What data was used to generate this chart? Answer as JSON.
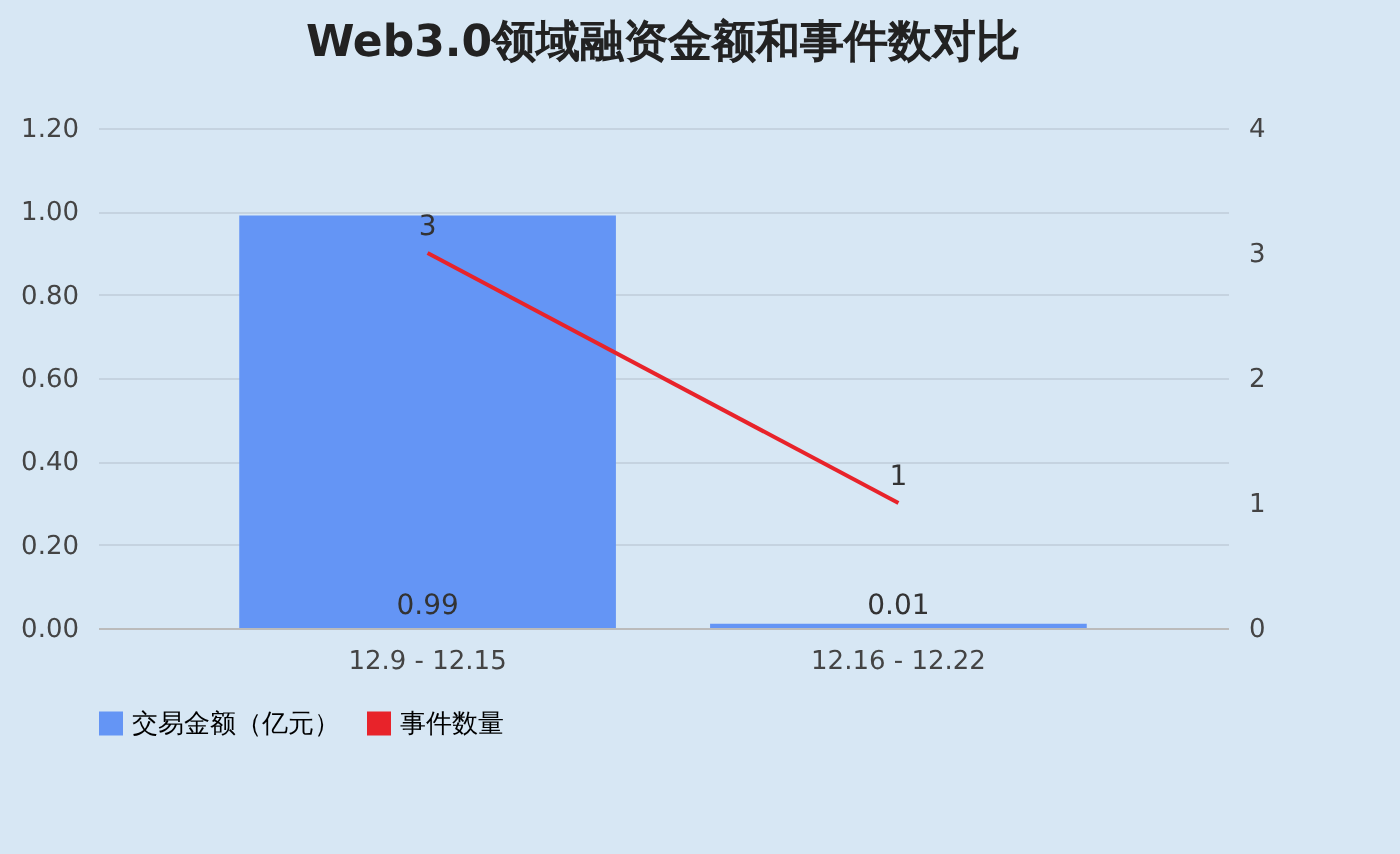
{
  "chart_data": {
    "type": "bar",
    "title": "Web3.0领域融资金额和事件数对比",
    "categories": [
      "12.9 - 12.15",
      "12.16 - 12.22"
    ],
    "series": [
      {
        "name": "交易金额（亿元）",
        "color": "#6495f5",
        "values": [
          0.99,
          0.01
        ]
      },
      {
        "name": "事件数量",
        "type": "line",
        "axis": "y2",
        "color": "#e8232a",
        "values": [
          3,
          1
        ]
      }
    ],
    "ylim": [
      0,
      1.2
    ],
    "yticks": [
      {
        "value": 0,
        "label": "0.00"
      },
      {
        "value": 0.2,
        "label": "0.20"
      },
      {
        "value": 0.4,
        "label": "0.40"
      },
      {
        "value": 0.6,
        "label": "0.60"
      },
      {
        "value": 0.8,
        "label": "0.80"
      },
      {
        "value": 1,
        "label": "1.00"
      },
      {
        "value": 1.2,
        "label": "1.20"
      }
    ],
    "y2lim": [
      0,
      4
    ],
    "y2ticks": [
      0,
      1,
      2,
      3,
      4
    ],
    "grid": "y",
    "legend": "bottom",
    "data_labels": true
  }
}
